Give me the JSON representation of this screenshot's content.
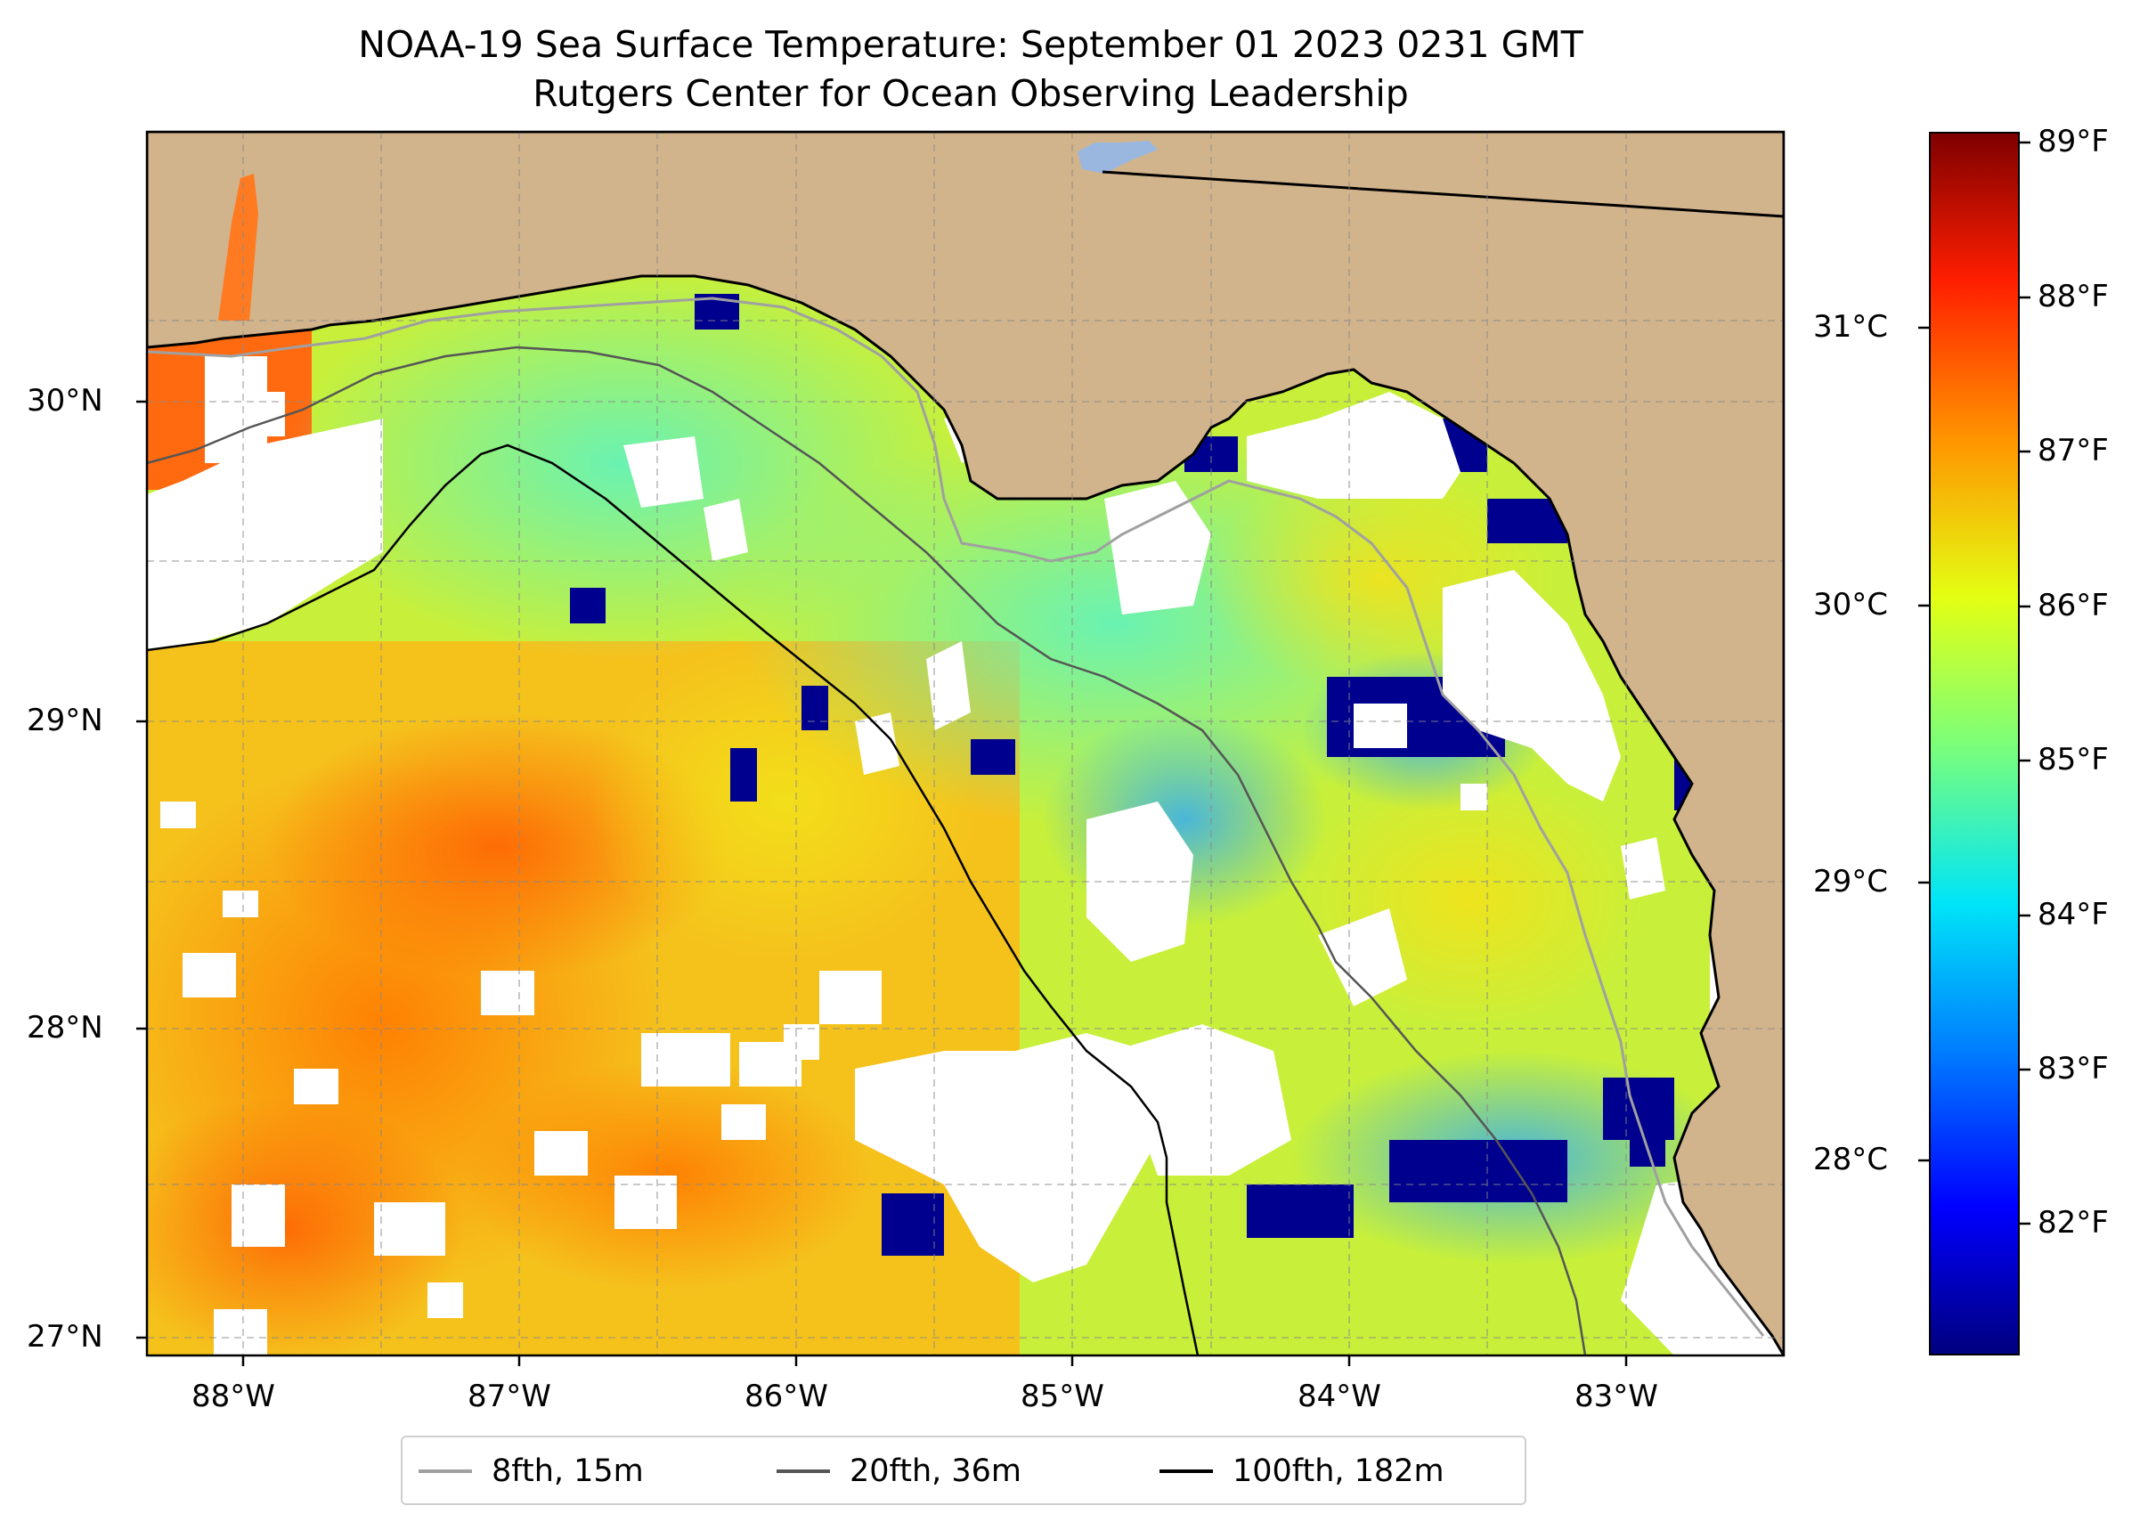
{
  "title": "NOAA-19 Sea Surface Temperature: September 01 2023 0231 GMT",
  "subtitle": "Rutgers Center for Ocean Observing Leadership",
  "axes": {
    "longitude_ticks": [
      "88°W",
      "87°W",
      "86°W",
      "85°W",
      "84°W",
      "83°W"
    ],
    "latitude_ticks": [
      "30°N",
      "29°N",
      "28°N",
      "27°N"
    ],
    "lon_range": [
      -88.33,
      -82.42
    ],
    "lat_range": [
      26.93,
      30.86
    ],
    "gridlines": true
  },
  "colorbar": {
    "fahrenheit_ticks": [
      "89°F",
      "88°F",
      "87°F",
      "86°F",
      "85°F",
      "84°F",
      "83°F",
      "82°F"
    ],
    "celsius_ticks": [
      "31°C",
      "30°C",
      "29°C",
      "28°C"
    ],
    "colormap": "jet"
  },
  "legend": {
    "items": [
      {
        "label": "8fth, 15m",
        "color": "#a0a0a0"
      },
      {
        "label": "20fth, 36m",
        "color": "#555555"
      },
      {
        "label": "100fth, 182m",
        "color": "#000000"
      }
    ]
  },
  "colors": {
    "land": "#d2b48c",
    "no_data": "#ffffff",
    "coastline": "#000000",
    "inland_water": "#9ab7e0"
  }
}
